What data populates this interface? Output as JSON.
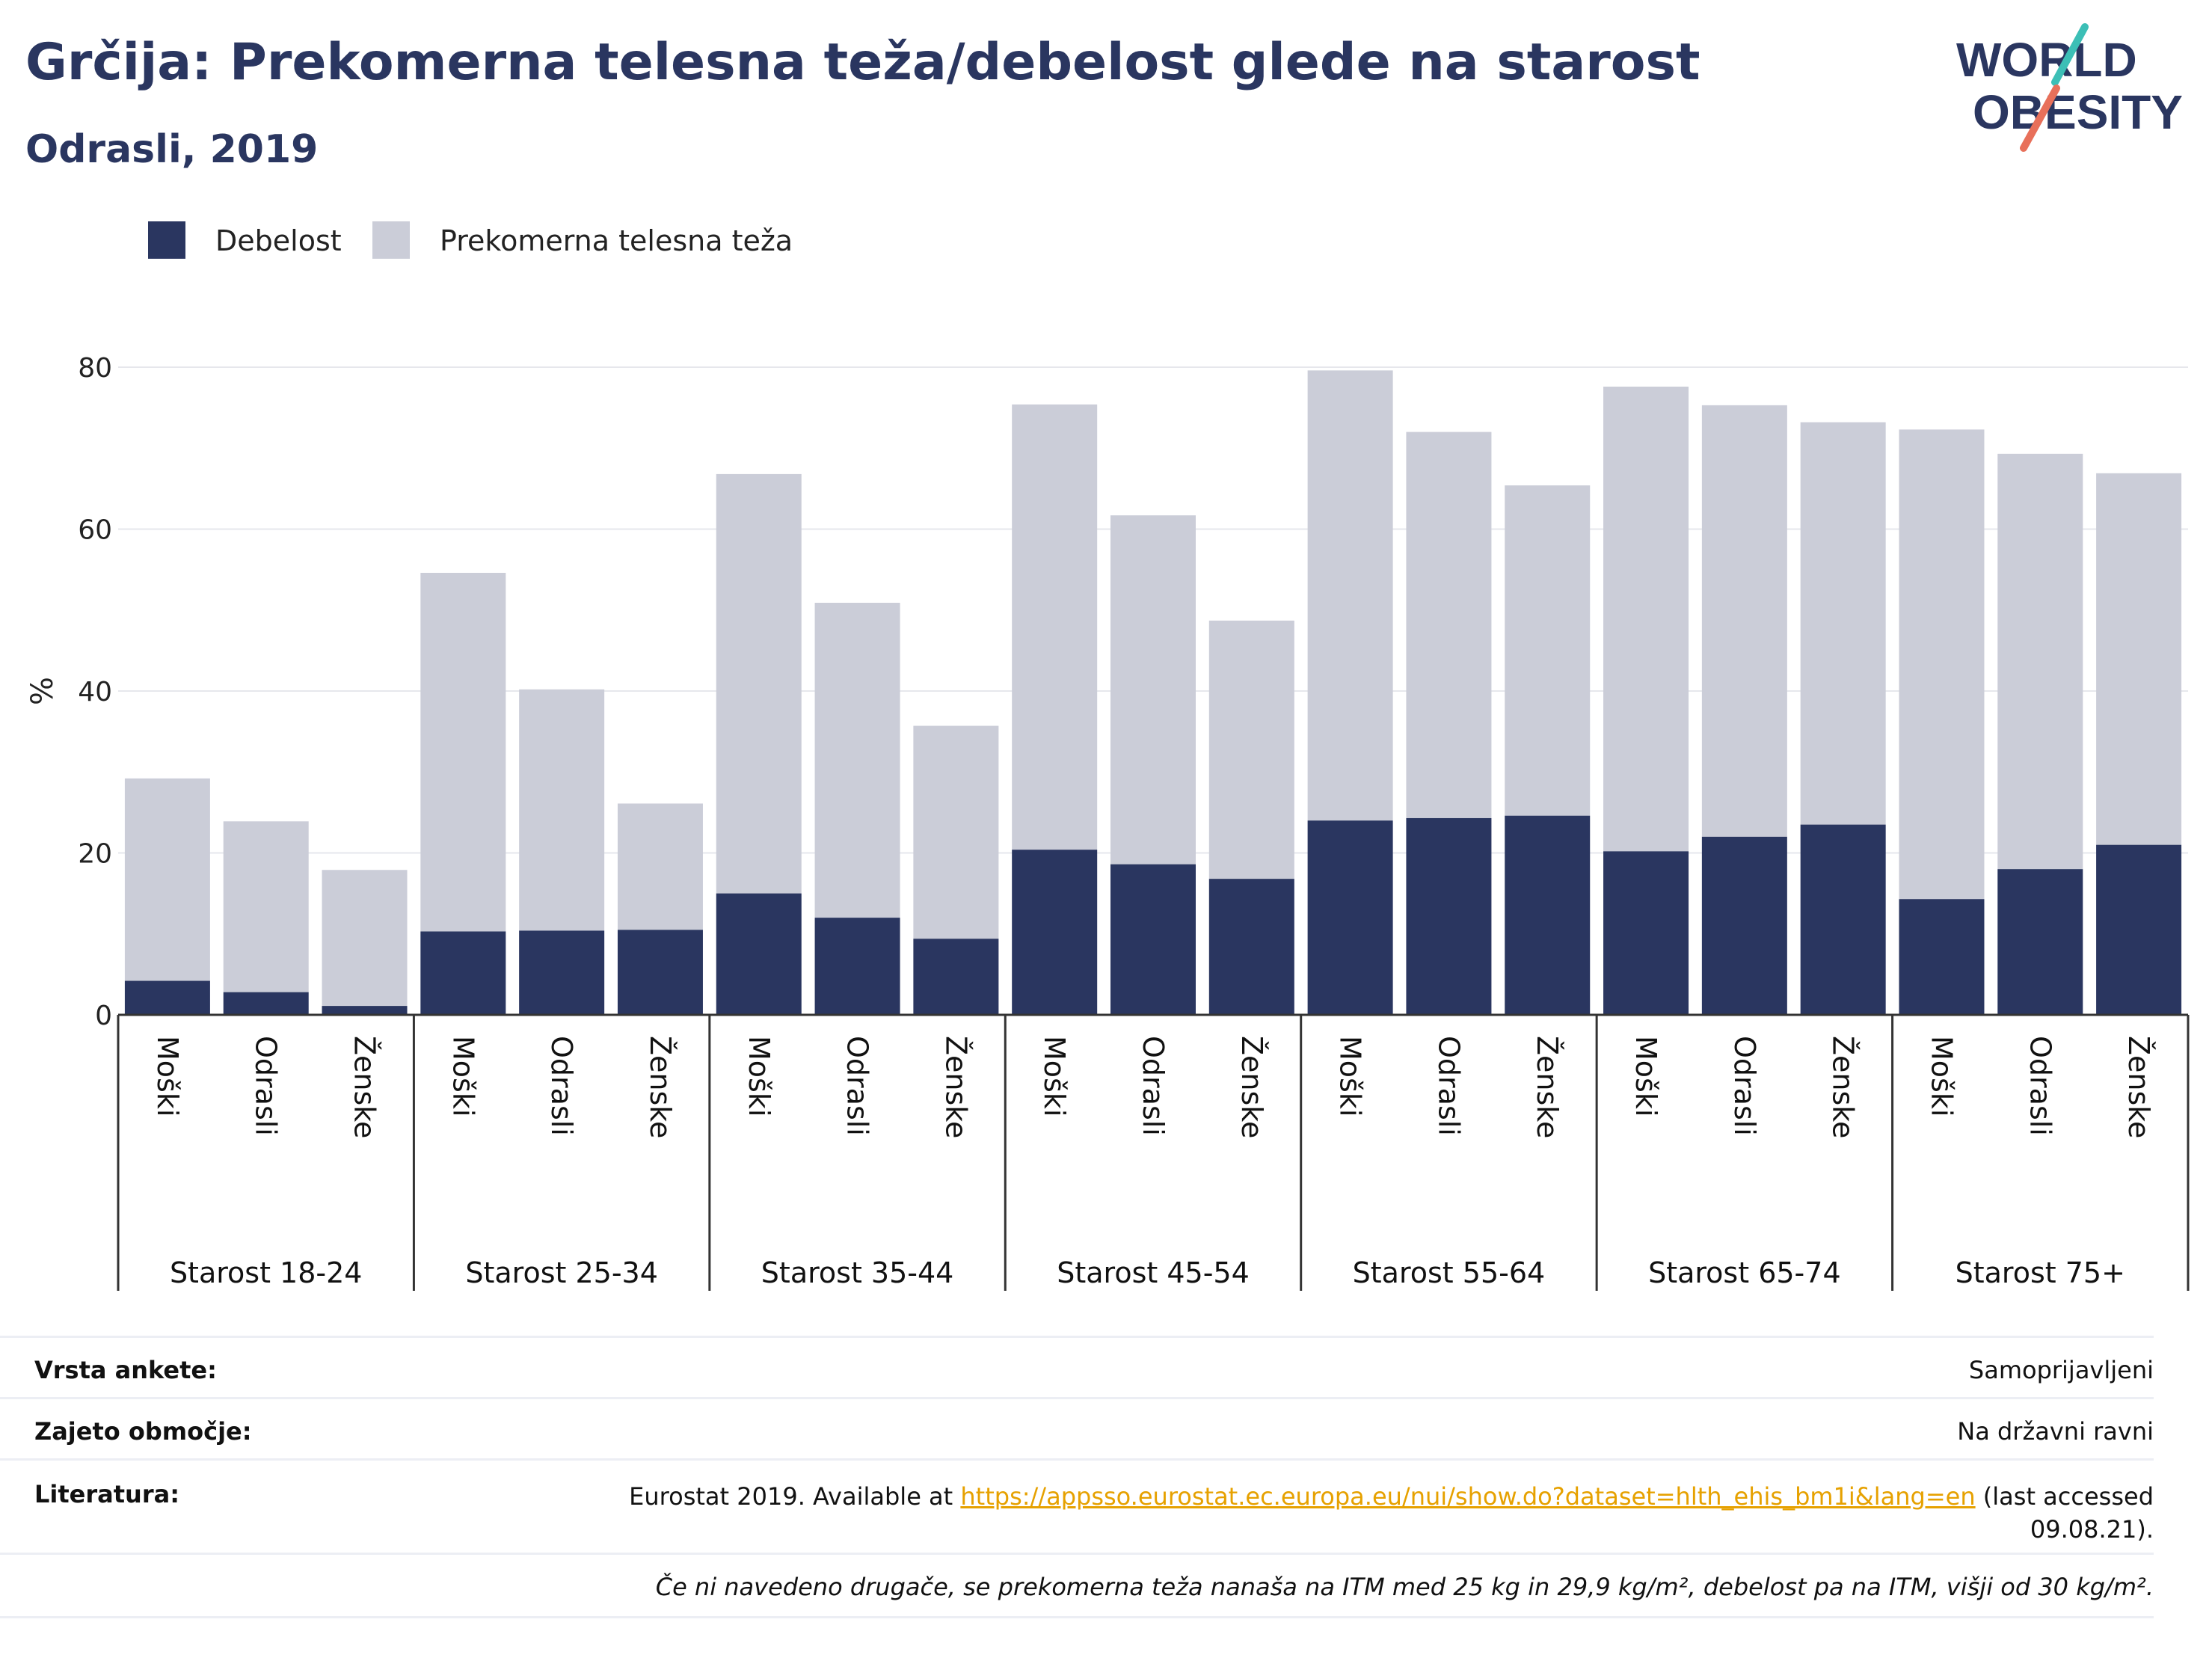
{
  "header": {
    "title": "Grčija: Prekomerna telesna teža/debelost glede na starost",
    "subtitle": "Odrasli, 2019"
  },
  "logo": {
    "line1": "WORLD",
    "line2": "OBESITY"
  },
  "colors": {
    "obesity": "#2a3660",
    "overweight": "#cbcdd8",
    "title": "#2a3660",
    "link": "#e6a100",
    "logo_teal": "#3cbfb6",
    "logo_coral": "#e8705a"
  },
  "legend": [
    {
      "label": "Debelost",
      "color": "#2a3660"
    },
    {
      "label": "Prekomerna telesna teža",
      "color": "#cbcdd8"
    }
  ],
  "chart_data": {
    "type": "bar",
    "stacked": true,
    "ylabel": "%",
    "ylim": [
      0,
      80
    ],
    "yticks": [
      0,
      20,
      40,
      60,
      80
    ],
    "grid": true,
    "legend_position": "top-left",
    "groups": [
      {
        "label": "Starost 18-24",
        "bars": [
          {
            "label": "Moški",
            "obesity": 4.2,
            "total": 29.2
          },
          {
            "label": "Odrasli",
            "obesity": 2.8,
            "total": 23.9
          },
          {
            "label": "Ženske",
            "obesity": 1.1,
            "total": 17.9
          }
        ]
      },
      {
        "label": "Starost 25-34",
        "bars": [
          {
            "label": "Moški",
            "obesity": 10.3,
            "total": 54.6
          },
          {
            "label": "Odrasli",
            "obesity": 10.4,
            "total": 40.2
          },
          {
            "label": "Ženske",
            "obesity": 10.5,
            "total": 26.1
          }
        ]
      },
      {
        "label": "Starost 35-44",
        "bars": [
          {
            "label": "Moški",
            "obesity": 15.0,
            "total": 66.8
          },
          {
            "label": "Odrasli",
            "obesity": 12.0,
            "total": 50.9
          },
          {
            "label": "Ženske",
            "obesity": 9.4,
            "total": 35.7
          }
        ]
      },
      {
        "label": "Starost 45-54",
        "bars": [
          {
            "label": "Moški",
            "obesity": 20.4,
            "total": 75.4
          },
          {
            "label": "Odrasli",
            "obesity": 18.6,
            "total": 61.7
          },
          {
            "label": "Ženske",
            "obesity": 16.8,
            "total": 48.7
          }
        ]
      },
      {
        "label": "Starost 55-64",
        "bars": [
          {
            "label": "Moški",
            "obesity": 24.0,
            "total": 79.6
          },
          {
            "label": "Odrasli",
            "obesity": 24.3,
            "total": 72.0
          },
          {
            "label": "Ženske",
            "obesity": 24.6,
            "total": 65.4
          }
        ]
      },
      {
        "label": "Starost 65-74",
        "bars": [
          {
            "label": "Moški",
            "obesity": 20.2,
            "total": 77.6
          },
          {
            "label": "Odrasli",
            "obesity": 22.0,
            "total": 75.3
          },
          {
            "label": "Ženske",
            "obesity": 23.5,
            "total": 73.2
          }
        ]
      },
      {
        "label": "Starost 75+",
        "bars": [
          {
            "label": "Moški",
            "obesity": 14.3,
            "total": 72.3
          },
          {
            "label": "Odrasli",
            "obesity": 18.0,
            "total": 69.3
          },
          {
            "label": "Ženske",
            "obesity": 21.0,
            "total": 66.9
          }
        ]
      }
    ]
  },
  "info": {
    "survey_type_label": "Vrsta ankete:",
    "survey_type_value": "Samoprijavljeni",
    "coverage_label": "Zajeto območje:",
    "coverage_value": "Na državni ravni",
    "references_label": "Literatura:",
    "references_prefix": "Eurostat 2019. Available at",
    "references_link": "https://appsso.eurostat.ec.europa.eu/nui/show.do?dataset=hlth_ehis_bm1i&lang=en",
    "references_suffix": "(last accessed",
    "references_date": "09.08.21).",
    "note": "Če ni navedeno drugače, se prekomerna teža nanaša na ITM med 25 kg in 29,9 kg/m², debelost pa na ITM, višji od 30 kg/m²."
  }
}
